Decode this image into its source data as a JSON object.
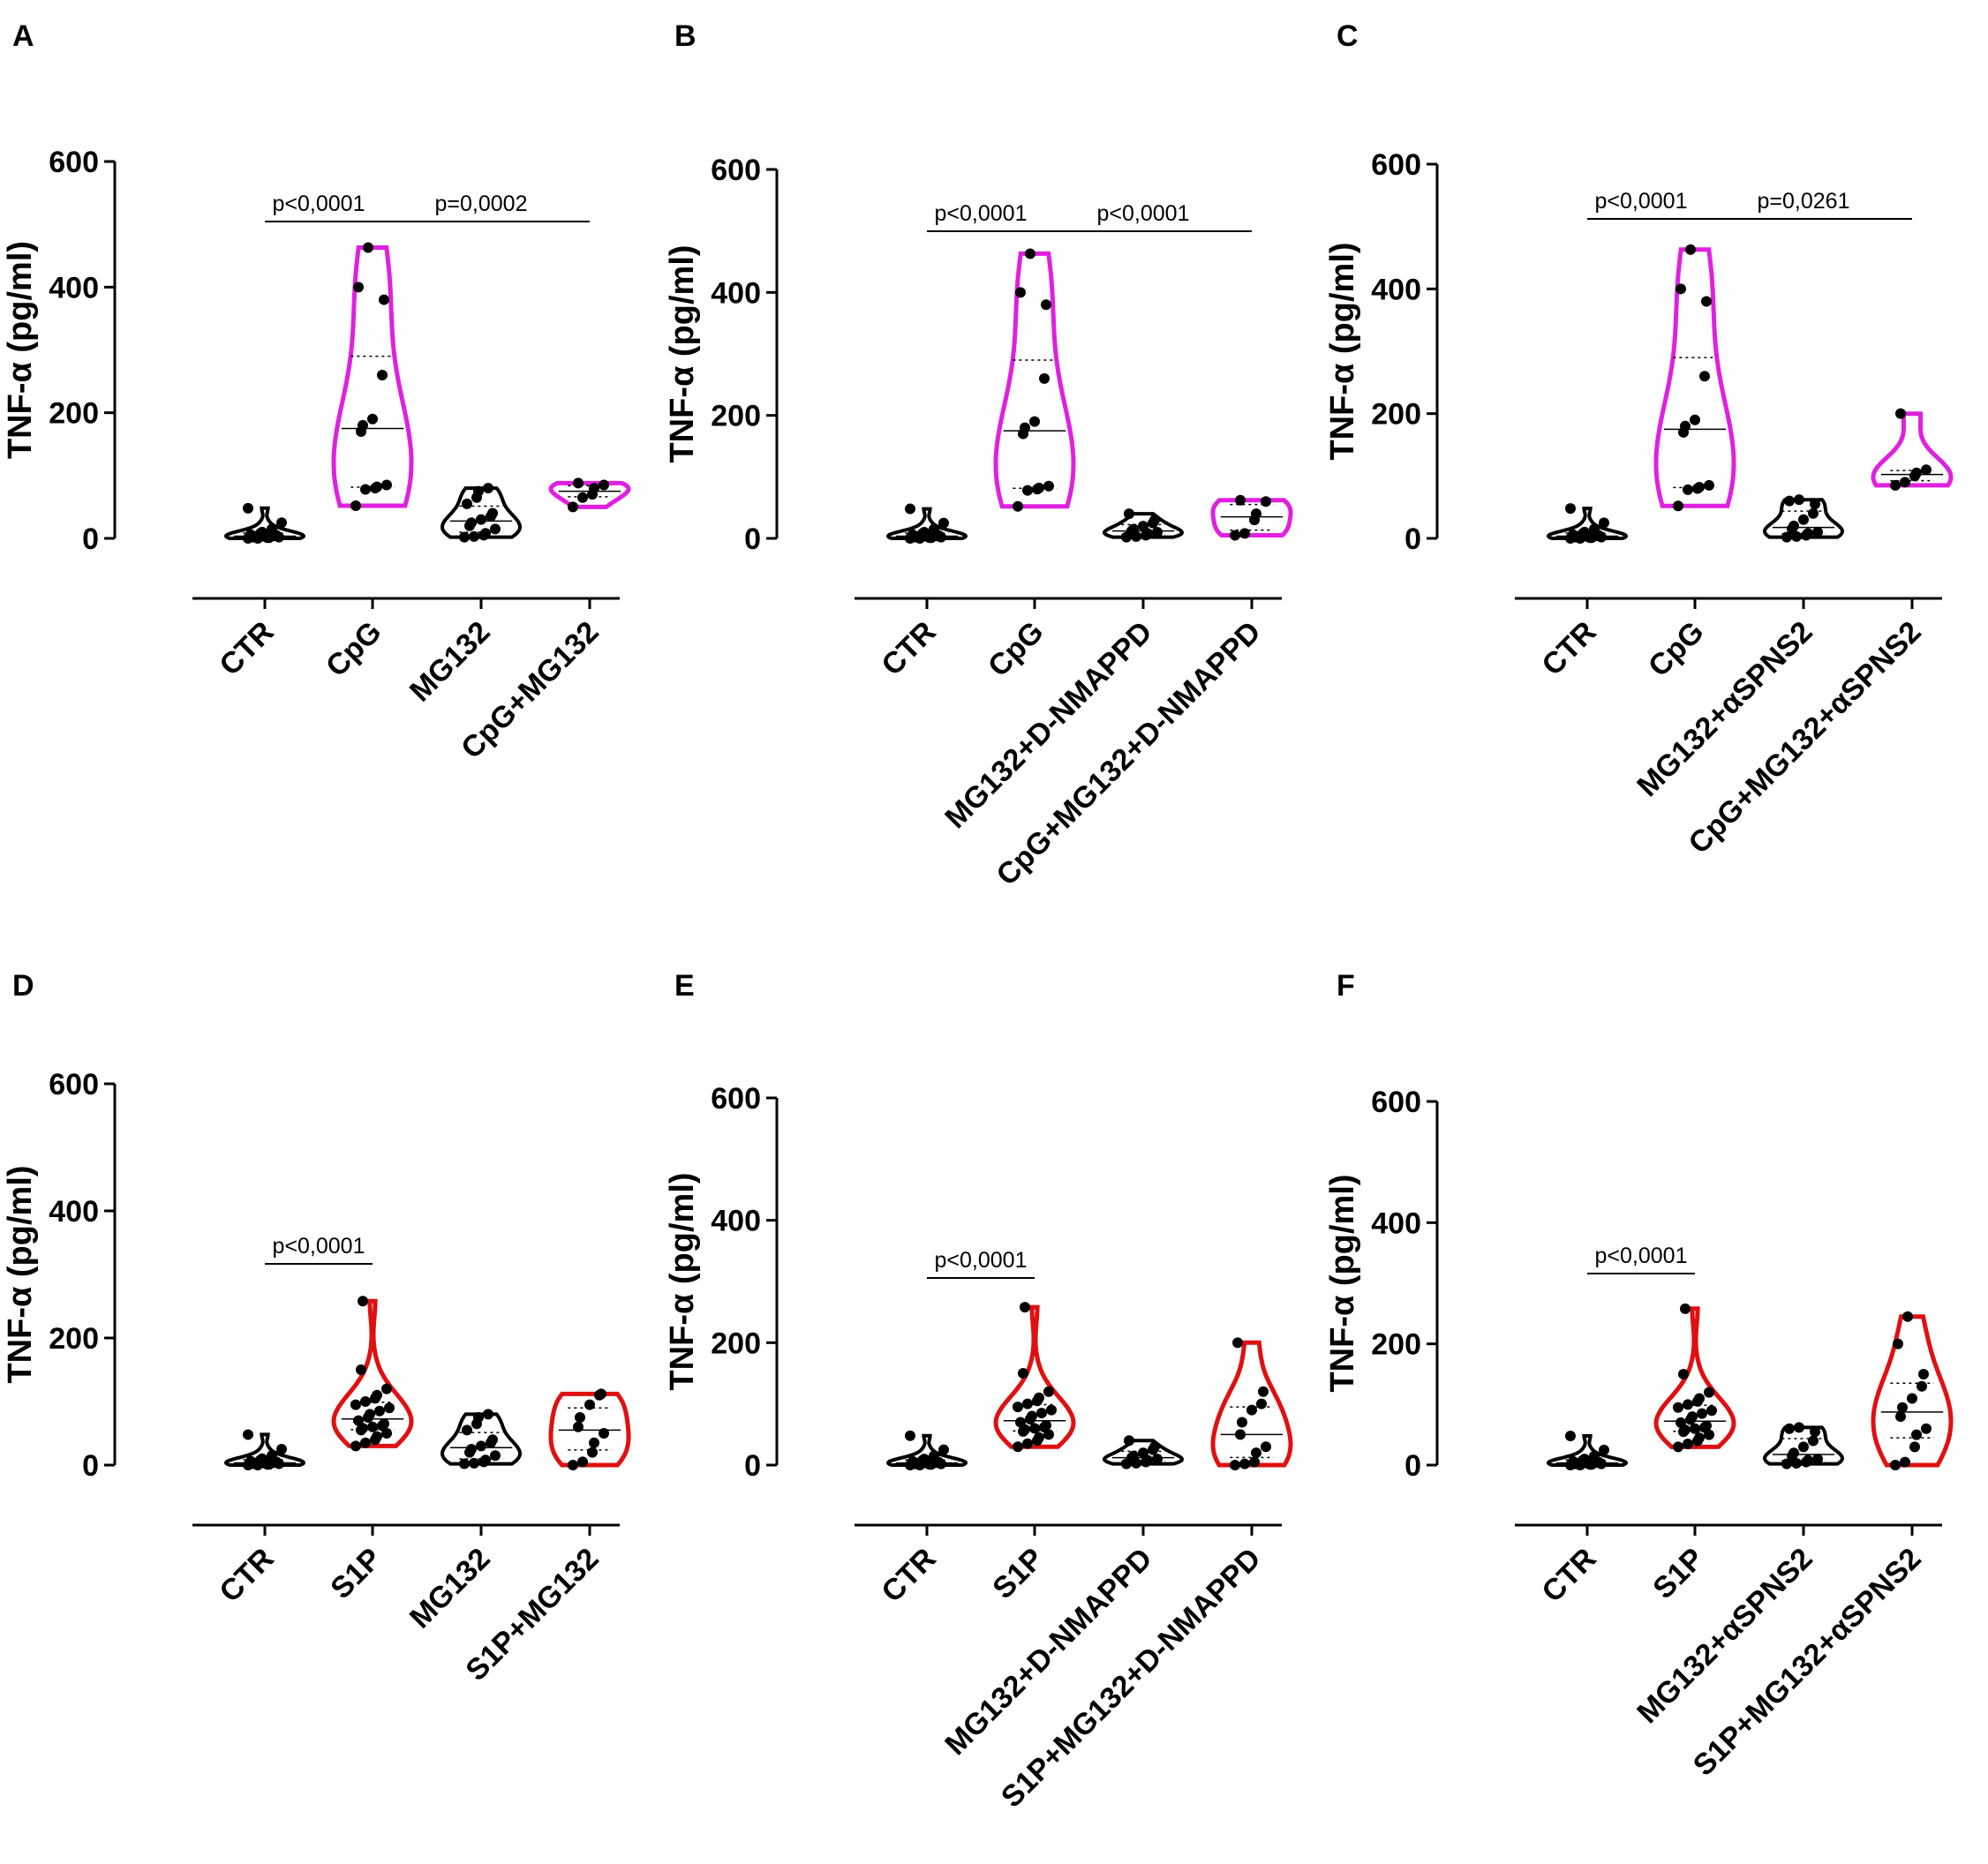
{
  "figure": {
    "description_colors": {
      "magenta": "#E020E0",
      "red": "#E01010",
      "black": "#000000"
    },
    "panels": [
      {
        "letter": "A",
        "ylabel": "TNF-α (pg/ml)",
        "yticks": [
          0,
          200,
          400,
          600
        ],
        "ylim": [
          0,
          600
        ],
        "categories": [
          "CTR",
          "CpG",
          "MG132",
          "CpG+MG132"
        ],
        "colors": [
          "#000000",
          "#E020E0",
          "#000000",
          "#E020E0"
        ],
        "comparisons": [
          {
            "from": 0,
            "to": 1,
            "label": "p<0,0001"
          },
          {
            "from": 1,
            "to": 3,
            "label": "p=0,0002"
          }
        ]
      },
      {
        "letter": "B",
        "ylabel": "TNF-α (pg/ml)",
        "yticks": [
          0,
          200,
          400,
          600
        ],
        "ylim": [
          0,
          600
        ],
        "categories": [
          "CTR",
          "CpG",
          "MG132+D-NMAPPD",
          "CpG+MG132+D-NMAPPD"
        ],
        "colors": [
          "#000000",
          "#E020E0",
          "#000000",
          "#E020E0"
        ],
        "comparisons": [
          {
            "from": 0,
            "to": 1,
            "label": "p<0,0001"
          },
          {
            "from": 1,
            "to": 3,
            "label": "p<0,0001"
          }
        ]
      },
      {
        "letter": "C",
        "ylabel": "TNF-α (pg/ml)",
        "yticks": [
          0,
          200,
          400,
          600
        ],
        "ylim": [
          0,
          600
        ],
        "categories": [
          "CTR",
          "CpG",
          "MG132+αSPNS2",
          "CpG+MG132+αSPNS2"
        ],
        "colors": [
          "#000000",
          "#E020E0",
          "#000000",
          "#E020E0"
        ],
        "comparisons": [
          {
            "from": 0,
            "to": 1,
            "label": "p<0,0001"
          },
          {
            "from": 1,
            "to": 3,
            "label": "p=0,0261"
          }
        ]
      },
      {
        "letter": "D",
        "ylabel": "TNF-α (pg/ml)",
        "yticks": [
          0,
          200,
          400,
          600
        ],
        "ylim": [
          0,
          600
        ],
        "categories": [
          "CTR",
          "S1P",
          "MG132",
          "S1P+MG132"
        ],
        "colors": [
          "#000000",
          "#E01010",
          "#000000",
          "#E01010"
        ],
        "comparisons": [
          {
            "from": 0,
            "to": 1,
            "label": "p<0,0001"
          }
        ]
      },
      {
        "letter": "E",
        "ylabel": "TNF-α (pg/ml)",
        "yticks": [
          0,
          200,
          400,
          600
        ],
        "ylim": [
          0,
          600
        ],
        "categories": [
          "CTR",
          "S1P",
          "MG132+D-NMAPPD",
          "S1P+MG132+D-NMAPPD"
        ],
        "colors": [
          "#000000",
          "#E01010",
          "#000000",
          "#E01010"
        ],
        "comparisons": [
          {
            "from": 0,
            "to": 1,
            "label": "p<0,0001"
          }
        ]
      },
      {
        "letter": "F",
        "ylabel": "TNF-α (pg/ml)",
        "yticks": [
          0,
          200,
          400,
          600
        ],
        "ylim": [
          0,
          600
        ],
        "categories": [
          "CTR",
          "S1P",
          "MG132+αSPNS2",
          "S1P+MG132+αSPNS2"
        ],
        "colors": [
          "#000000",
          "#E01010",
          "#000000",
          "#E01010"
        ],
        "comparisons": [
          {
            "from": 0,
            "to": 1,
            "label": "p<0,0001"
          }
        ]
      }
    ]
  },
  "chart_data": [
    {
      "type": "violin",
      "panel": "A",
      "ylabel": "TNF-α (pg/ml)",
      "ylim": [
        0,
        600
      ],
      "categories": [
        "CTR",
        "CpG",
        "MG132",
        "CpG+MG132"
      ],
      "series": [
        {
          "name": "CTR",
          "values": [
            0,
            0,
            1,
            1,
            2,
            2,
            3,
            3,
            4,
            5,
            6,
            8,
            10,
            15,
            25,
            48
          ]
        },
        {
          "name": "CpG",
          "values": [
            52,
            78,
            80,
            82,
            85,
            170,
            180,
            190,
            260,
            380,
            400,
            463
          ]
        },
        {
          "name": "MG132",
          "values": [
            2,
            3,
            5,
            8,
            15,
            20,
            25,
            30,
            35,
            40,
            55,
            65,
            75,
            80
          ]
        },
        {
          "name": "CpG+MG132",
          "values": [
            50,
            65,
            70,
            80,
            85,
            88
          ]
        }
      ]
    },
    {
      "type": "violin",
      "panel": "B",
      "ylabel": "TNF-α (pg/ml)",
      "ylim": [
        0,
        600
      ],
      "categories": [
        "CTR",
        "CpG",
        "MG132+D-NMAPPD",
        "CpG+MG132+D-NMAPPD"
      ],
      "series": [
        {
          "name": "CTR",
          "values": [
            0,
            0,
            1,
            1,
            2,
            2,
            3,
            3,
            4,
            5,
            6,
            8,
            10,
            15,
            25,
            48
          ]
        },
        {
          "name": "CpG",
          "values": [
            52,
            78,
            80,
            82,
            85,
            170,
            180,
            190,
            260,
            380,
            400,
            463
          ]
        },
        {
          "name": "MG132+D-NMAPPD",
          "values": [
            2,
            3,
            5,
            8,
            10,
            12,
            15,
            20,
            25,
            30,
            40
          ]
        },
        {
          "name": "CpG+MG132+D-NMAPPD",
          "values": [
            5,
            8,
            30,
            40,
            60,
            62
          ]
        }
      ]
    },
    {
      "type": "violin",
      "panel": "C",
      "ylabel": "TNF-α (pg/ml)",
      "ylim": [
        0,
        600
      ],
      "categories": [
        "CTR",
        "CpG",
        "MG132+αSPNS2",
        "CpG+MG132+αSPNS2"
      ],
      "series": [
        {
          "name": "CTR",
          "values": [
            0,
            0,
            1,
            1,
            2,
            2,
            3,
            3,
            4,
            5,
            6,
            8,
            10,
            15,
            25,
            48
          ]
        },
        {
          "name": "CpG",
          "values": [
            52,
            78,
            80,
            82,
            85,
            170,
            180,
            190,
            260,
            380,
            400,
            463
          ]
        },
        {
          "name": "MG132+αSPNS2",
          "values": [
            2,
            3,
            5,
            8,
            10,
            15,
            20,
            30,
            40,
            55,
            60,
            62
          ]
        },
        {
          "name": "CpG+MG132+αSPNS2",
          "values": [
            85,
            90,
            100,
            105,
            110,
            200
          ]
        }
      ]
    },
    {
      "type": "violin",
      "panel": "D",
      "ylabel": "TNF-α (pg/ml)",
      "ylim": [
        0,
        600
      ],
      "categories": [
        "CTR",
        "S1P",
        "MG132",
        "S1P+MG132"
      ],
      "series": [
        {
          "name": "CTR",
          "values": [
            0,
            0,
            1,
            1,
            2,
            2,
            3,
            3,
            4,
            5,
            6,
            8,
            10,
            15,
            25,
            48
          ]
        },
        {
          "name": "S1P",
          "values": [
            30,
            35,
            40,
            45,
            50,
            55,
            58,
            60,
            62,
            65,
            70,
            75,
            80,
            85,
            90,
            95,
            100,
            105,
            110,
            120,
            150,
            258
          ]
        },
        {
          "name": "MG132",
          "values": [
            2,
            3,
            5,
            8,
            15,
            20,
            25,
            30,
            35,
            40,
            55,
            65,
            75,
            80
          ]
        },
        {
          "name": "S1P+MG132",
          "values": [
            0,
            5,
            20,
            35,
            50,
            60,
            75,
            95,
            110,
            112
          ]
        }
      ]
    },
    {
      "type": "violin",
      "panel": "E",
      "ylabel": "TNF-α (pg/ml)",
      "ylim": [
        0,
        600
      ],
      "categories": [
        "CTR",
        "S1P",
        "MG132+D-NMAPPD",
        "S1P+MG132+D-NMAPPD"
      ],
      "series": [
        {
          "name": "CTR",
          "values": [
            0,
            0,
            1,
            1,
            2,
            2,
            3,
            3,
            4,
            5,
            6,
            8,
            10,
            15,
            25,
            48
          ]
        },
        {
          "name": "S1P",
          "values": [
            30,
            35,
            40,
            45,
            50,
            55,
            58,
            60,
            62,
            65,
            70,
            75,
            80,
            85,
            90,
            95,
            100,
            105,
            110,
            120,
            150,
            258
          ]
        },
        {
          "name": "MG132+D-NMAPPD",
          "values": [
            2,
            3,
            5,
            8,
            10,
            12,
            15,
            20,
            25,
            30,
            40
          ]
        },
        {
          "name": "S1P+MG132+D-NMAPPD",
          "values": [
            0,
            2,
            5,
            20,
            30,
            50,
            70,
            90,
            100,
            120,
            200
          ]
        }
      ]
    },
    {
      "type": "violin",
      "panel": "F",
      "ylabel": "TNF-α (pg/ml)",
      "ylim": [
        0,
        600
      ],
      "categories": [
        "CTR",
        "S1P",
        "MG132+αSPNS2",
        "S1P+MG132+αSPNS2"
      ],
      "series": [
        {
          "name": "CTR",
          "values": [
            0,
            0,
            1,
            1,
            2,
            2,
            3,
            3,
            4,
            5,
            6,
            8,
            10,
            15,
            25,
            48
          ]
        },
        {
          "name": "S1P",
          "values": [
            30,
            35,
            40,
            45,
            50,
            55,
            58,
            60,
            62,
            65,
            70,
            75,
            80,
            85,
            90,
            95,
            100,
            105,
            110,
            120,
            150,
            258
          ]
        },
        {
          "name": "MG132+αSPNS2",
          "values": [
            2,
            3,
            5,
            8,
            10,
            15,
            20,
            30,
            40,
            55,
            60,
            62
          ]
        },
        {
          "name": "S1P+MG132+αSPNS2",
          "values": [
            0,
            5,
            30,
            50,
            60,
            80,
            95,
            110,
            130,
            150,
            200,
            245
          ]
        }
      ]
    }
  ]
}
